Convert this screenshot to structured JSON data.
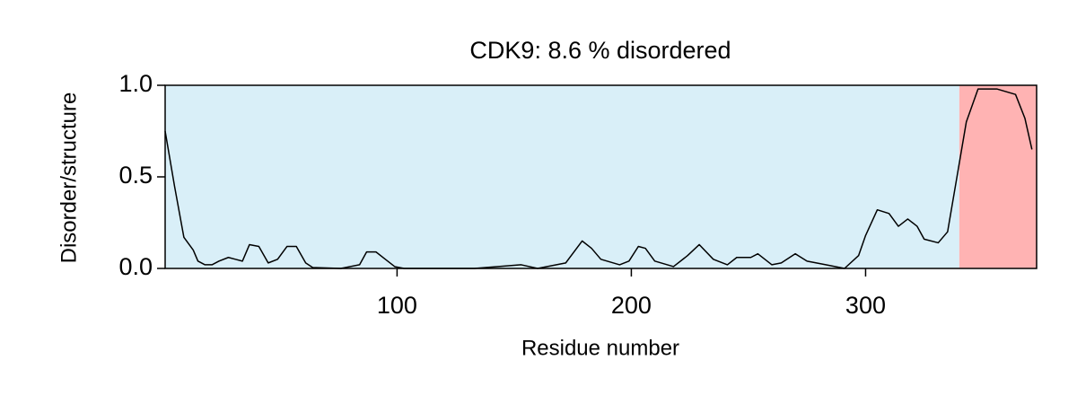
{
  "chart_data": {
    "type": "line",
    "title": "CDK9: 8.6 % disordered",
    "xlabel": "Residue number",
    "ylabel": "Disorder/structure",
    "x": [
      1,
      3,
      5,
      9,
      13,
      15,
      18,
      21,
      24,
      28,
      31,
      34,
      37,
      41,
      45,
      49,
      53,
      57,
      61,
      64,
      76,
      84,
      87,
      91,
      95,
      99,
      103,
      133,
      153,
      160,
      172,
      179,
      183,
      187,
      195,
      199,
      203,
      206,
      210,
      218,
      224,
      229,
      235,
      241,
      245,
      251,
      254,
      260,
      264,
      270,
      275,
      283,
      291,
      297,
      300,
      305,
      310,
      314,
      318,
      322,
      325,
      331,
      335,
      339,
      343,
      348,
      356,
      364,
      368,
      371
    ],
    "series": [
      {
        "name": "Disorder",
        "color": "#000000",
        "values": [
          0.75,
          0.6,
          0.45,
          0.17,
          0.1,
          0.04,
          0.02,
          0.02,
          0.04,
          0.06,
          0.05,
          0.04,
          0.13,
          0.12,
          0.03,
          0.05,
          0.12,
          0.12,
          0.03,
          0.005,
          0,
          0.02,
          0.09,
          0.09,
          0.05,
          0.01,
          0,
          0,
          0.02,
          0,
          0.03,
          0.15,
          0.11,
          0.05,
          0.02,
          0.04,
          0.12,
          0.11,
          0.04,
          0.01,
          0.07,
          0.13,
          0.05,
          0.02,
          0.06,
          0.06,
          0.08,
          0.02,
          0.03,
          0.08,
          0.04,
          0.02,
          0,
          0.07,
          0.18,
          0.32,
          0.3,
          0.23,
          0.27,
          0.23,
          0.16,
          0.14,
          0.2,
          0.5,
          0.8,
          0.98,
          0.98,
          0.95,
          0.82,
          0.65
        ]
      }
    ],
    "regions": [
      {
        "start": 1,
        "end": 340,
        "color": "#d9eff8"
      },
      {
        "start": 340,
        "end": 373,
        "color": "#ffb3b3"
      }
    ],
    "xlim": [
      1,
      373
    ],
    "ylim": [
      0,
      1
    ],
    "xticks": [
      100,
      200,
      300
    ],
    "yticks": [
      {
        "value": 0,
        "label": "0.0"
      },
      {
        "value": 0.5,
        "label": "0.5"
      },
      {
        "value": 1,
        "label": "1.0"
      }
    ]
  }
}
